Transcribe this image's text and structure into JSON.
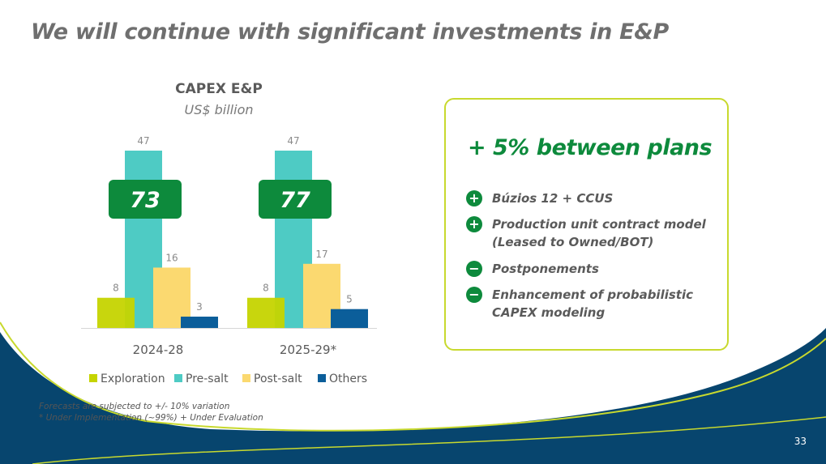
{
  "title": "We will continue with significant investments in E&P",
  "chart_data": {
    "type": "bar",
    "title": "CAPEX E&P",
    "subtitle": "US$ billion",
    "categories": [
      "2024-28",
      "2025-29*"
    ],
    "series": [
      {
        "name": "Exploration",
        "color": "#c5d400",
        "values": [
          8,
          8
        ]
      },
      {
        "name": "Pre-salt",
        "color": "#4ecbc4",
        "values": [
          47,
          47
        ]
      },
      {
        "name": "Post-salt",
        "color": "#fbd970",
        "values": [
          16,
          17
        ]
      },
      {
        "name": "Others",
        "color": "#0b5e9a",
        "values": [
          3,
          5
        ]
      }
    ],
    "totals": [
      73,
      77
    ],
    "ylim": [
      0,
      50
    ],
    "legend_position": "bottom"
  },
  "panel": {
    "headline": "+ 5% between plans",
    "items": [
      {
        "sign": "+",
        "text": "Búzios 12 + CCUS"
      },
      {
        "sign": "+",
        "text": "Production unit contract model (Leased to Owned/BOT)"
      },
      {
        "sign": "−",
        "text": "Postponements"
      },
      {
        "sign": "−",
        "text": "Enhancement of probabilistic CAPEX modeling"
      }
    ]
  },
  "notes": [
    "Forecasts are subjected to +/- 10% variation",
    "* Under Implementation (~99%) +  Under Evaluation"
  ],
  "page_number": "33",
  "colors": {
    "navy": "#07456e",
    "lime": "#c8d92e",
    "green": "#0d8a3c",
    "title_gray": "#6f6f6f"
  }
}
